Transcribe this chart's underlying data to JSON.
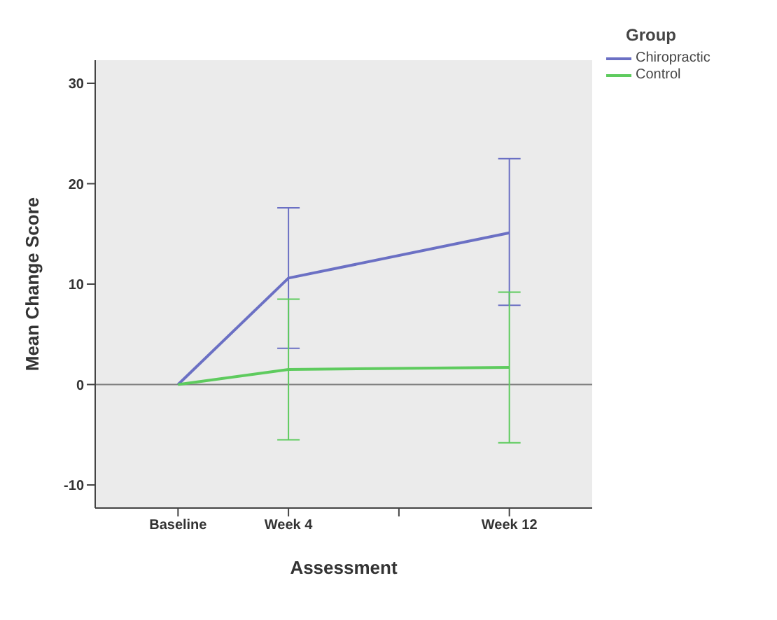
{
  "chart_data": {
    "type": "line",
    "xlabel": "Assessment",
    "ylabel": "Mean Change Score",
    "legend_title": "Group",
    "categories": [
      "Baseline",
      "Week 4",
      null,
      "Week 12"
    ],
    "ylim": [
      -12.3,
      32.3
    ],
    "yticks": [
      -10,
      0,
      10,
      20,
      30
    ],
    "series": [
      {
        "name": "Chiropractic",
        "color": "#6b70c4",
        "values": [
          0,
          10.6,
          null,
          15.1
        ],
        "errors": [
          null,
          [
            3.6,
            17.6
          ],
          null,
          [
            7.9,
            22.5
          ]
        ]
      },
      {
        "name": "Control",
        "color": "#5ecb5e",
        "values": [
          0,
          1.5,
          null,
          1.7
        ],
        "errors": [
          null,
          [
            -5.5,
            8.5
          ],
          null,
          [
            -5.8,
            9.2
          ]
        ]
      }
    ],
    "ref_lines": [
      {
        "axis": "y",
        "value": 0,
        "color": "#808080"
      }
    ],
    "grid": false,
    "legend": "top right",
    "marker": "none"
  }
}
